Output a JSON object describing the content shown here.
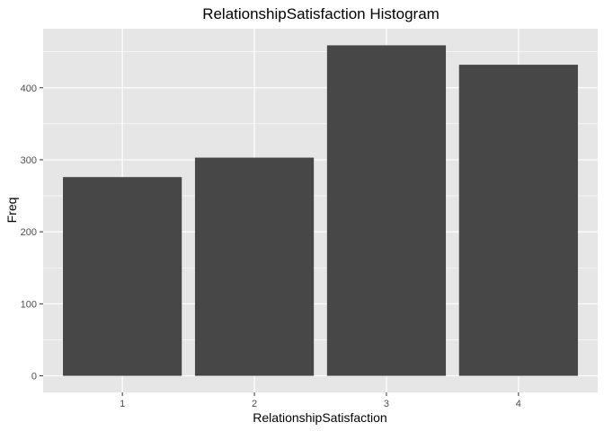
{
  "chart_data": {
    "type": "bar",
    "title": "RelationshipSatisfaction   Histogram",
    "xlabel": "RelationshipSatisfaction",
    "ylabel": "Freq",
    "categories": [
      "1",
      "2",
      "3",
      "4"
    ],
    "values": [
      276,
      303,
      459,
      432
    ],
    "ylim": [
      -23,
      482
    ],
    "yticks": [
      0,
      100,
      200,
      300,
      400
    ],
    "grid": true,
    "legend": "none",
    "colors": {
      "bar": "#474747",
      "panel": "#e6e6e6",
      "grid_major": "#ffffff",
      "tick_text": "#4d4d4d"
    }
  }
}
